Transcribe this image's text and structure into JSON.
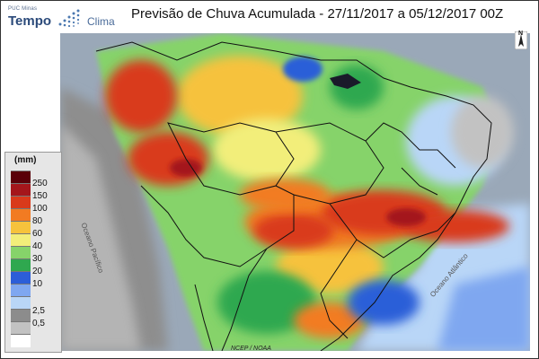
{
  "header": {
    "title": "Previsão de Chuva Acumulada - 27/11/2017 a 05/12/2017 00Z",
    "logo_small": "PUC Minas",
    "logo_main": "Tempo",
    "logo_secondary": "Clima"
  },
  "map": {
    "north_label": "N",
    "credit": "NCEP / NOAA",
    "place_labels": [
      "Oceano Pacífico",
      "Oceano Atlântico"
    ]
  },
  "legend": {
    "unit": "(mm)",
    "labels": [
      "250",
      "150",
      "100",
      "80",
      "60",
      "40",
      "30",
      "20",
      "10",
      "2,5",
      "0,5"
    ],
    "colors": [
      "#5a0008",
      "#a4161b",
      "#d93a1b",
      "#f27b22",
      "#f6c23c",
      "#f2ee7a",
      "#86d36a",
      "#2fa84f",
      "#2c5ed8",
      "#7fa7f0",
      "#b9d6f7",
      "#8c8c8c",
      "#c2c2c2",
      "#ffffff"
    ]
  }
}
